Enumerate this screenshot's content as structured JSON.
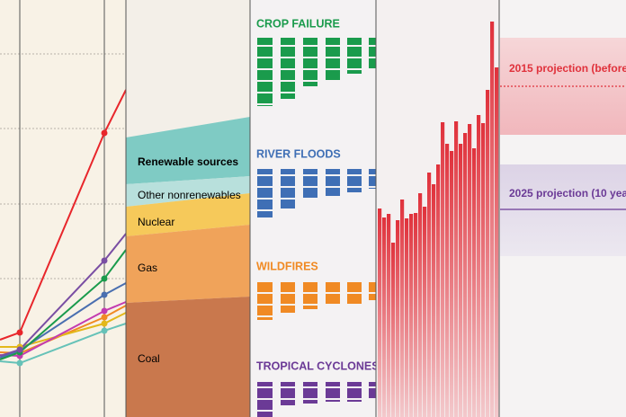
{
  "energy": {
    "labels": [
      "Renewable sources",
      "Other nonrenewables",
      "Nuclear",
      "Gas",
      "Coal"
    ]
  },
  "hazards": {
    "titles": [
      "CROP FAILURE",
      "RIVER FLOODS",
      "WILDFIRES",
      "TROPICAL CYCLONES"
    ]
  },
  "projections": [
    "2015 projection (before",
    "2025 projection (10 yea"
  ]
}
